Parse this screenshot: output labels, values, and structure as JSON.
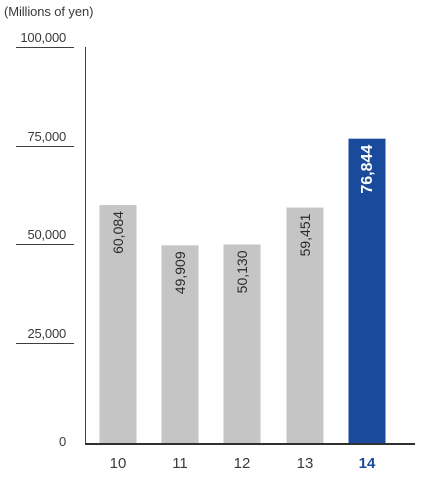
{
  "chart_data": {
    "type": "bar",
    "title": "",
    "ylabel": "(Millions of yen)",
    "xlabel": "",
    "categories": [
      "10",
      "11",
      "12",
      "13",
      "14"
    ],
    "values": [
      60084,
      49909,
      50130,
      59451,
      76844
    ],
    "value_labels": [
      "60,084",
      "49,909",
      "50,130",
      "59,451",
      "76,844"
    ],
    "highlight_index": 4,
    "ylim": [
      0,
      100000
    ],
    "yticks": [
      0,
      25000,
      50000,
      75000,
      100000
    ],
    "ytick_labels": [
      "0",
      "25,000",
      "50,000",
      "75,000",
      "100,000"
    ],
    "grid": false,
    "legend": "none",
    "colors": {
      "bar": "#c5c5c5",
      "highlight_bar": "#1a4a9c",
      "label": "#2a2a2a",
      "highlight_label": "#ffffff",
      "axis": "#3f3f3f"
    }
  }
}
